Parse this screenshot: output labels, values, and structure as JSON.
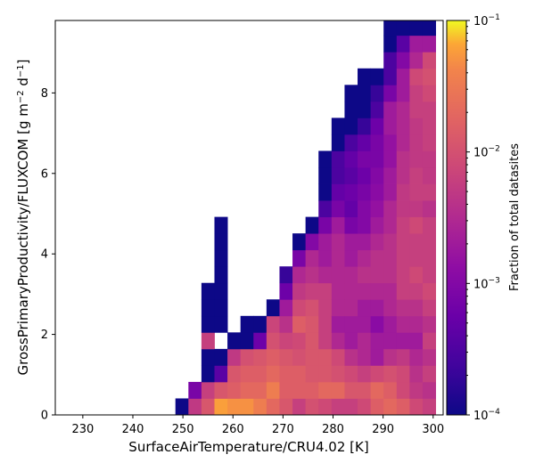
{
  "chart_data": {
    "type": "heatmap",
    "xlabel": "SurfaceAirTemperature/CRU4.02 [K]",
    "ylabel_main": "GrossPrimaryProductivity/FLUXCOM [g m",
    "ylabel_sup1": "−2",
    "ylabel_mid": " d",
    "ylabel_sup2": "−1",
    "ylabel_end": "]",
    "xlim": [
      224.5,
      302
    ],
    "ylim": [
      0,
      9.8
    ],
    "x_ticks": [
      230,
      240,
      250,
      260,
      270,
      280,
      290,
      300
    ],
    "y_ticks": [
      0,
      2,
      4,
      6,
      8
    ],
    "x_bin_edges_start": 248.5,
    "x_bin_width": 2.6,
    "y_bin_width": 0.41,
    "colorbar": {
      "label": "Fraction of total datasites",
      "scale": "log",
      "min": 0.0001,
      "max": 0.1,
      "tick_base": "10",
      "tick_exponents": [
        "−4",
        "−3",
        "−2",
        "−1"
      ],
      "colormap": "plasma"
    },
    "columns": [
      {
        "x": 249.8,
        "cells": [
          [
            0,
            0.0001
          ]
        ]
      },
      {
        "x": 252.4,
        "cells": [
          [
            0,
            0.005
          ],
          [
            1,
            0.0008
          ]
        ]
      },
      {
        "x": 255.0,
        "cells": [
          [
            0,
            0.012
          ],
          [
            1,
            0.006
          ],
          [
            2,
            0.0001
          ],
          [
            3,
            0.0001
          ],
          [
            4,
            0.006
          ],
          [
            5,
            0.0001
          ],
          [
            6,
            0.0001
          ],
          [
            7,
            0.0001
          ]
        ]
      },
      {
        "x": 257.6,
        "cells": [
          [
            0,
            0.06
          ],
          [
            1,
            0.012
          ],
          [
            2,
            0.0004
          ],
          [
            3,
            0.0001
          ],
          [
            5,
            0.0001
          ],
          [
            6,
            0.0001
          ],
          [
            7,
            0.0001
          ],
          [
            8,
            0.0001
          ],
          [
            9,
            0.0001
          ],
          [
            10,
            0.0001
          ],
          [
            11,
            0.0001
          ]
        ]
      },
      {
        "x": 260.2,
        "cells": [
          [
            0,
            0.05
          ],
          [
            1,
            0.015
          ],
          [
            2,
            0.012
          ],
          [
            3,
            0.005
          ],
          [
            4,
            0.0001
          ]
        ]
      },
      {
        "x": 262.8,
        "cells": [
          [
            0,
            0.05
          ],
          [
            1,
            0.02
          ],
          [
            2,
            0.015
          ],
          [
            3,
            0.01
          ],
          [
            4,
            0.0001
          ],
          [
            5,
            0.0001
          ]
        ]
      },
      {
        "x": 265.4,
        "cells": [
          [
            0,
            0.035
          ],
          [
            1,
            0.02
          ],
          [
            2,
            0.015
          ],
          [
            3,
            0.012
          ],
          [
            4,
            0.0006
          ],
          [
            5,
            0.0001
          ]
        ]
      },
      {
        "x": 268.0,
        "cells": [
          [
            0,
            0.02
          ],
          [
            1,
            0.035
          ],
          [
            2,
            0.02
          ],
          [
            3,
            0.015
          ],
          [
            4,
            0.01
          ],
          [
            5,
            0.007
          ],
          [
            6,
            0.0001
          ]
        ]
      },
      {
        "x": 270.6,
        "cells": [
          [
            0,
            0.012
          ],
          [
            1,
            0.015
          ],
          [
            2,
            0.015
          ],
          [
            3,
            0.012
          ],
          [
            4,
            0.007
          ],
          [
            5,
            0.004
          ],
          [
            6,
            0.002
          ],
          [
            7,
            0.0006
          ],
          [
            8,
            0.0002
          ]
        ]
      },
      {
        "x": 273.2,
        "cells": [
          [
            0,
            0.006
          ],
          [
            1,
            0.015
          ],
          [
            2,
            0.015
          ],
          [
            3,
            0.01
          ],
          [
            4,
            0.008
          ],
          [
            5,
            0.015
          ],
          [
            6,
            0.008
          ],
          [
            7,
            0.005
          ],
          [
            8,
            0.003
          ],
          [
            9,
            0.0008
          ],
          [
            10,
            0.0001
          ]
        ]
      },
      {
        "x": 275.8,
        "cells": [
          [
            0,
            0.01
          ],
          [
            1,
            0.015
          ],
          [
            2,
            0.012
          ],
          [
            3,
            0.012
          ],
          [
            4,
            0.012
          ],
          [
            5,
            0.012
          ],
          [
            6,
            0.01
          ],
          [
            7,
            0.006
          ],
          [
            8,
            0.004
          ],
          [
            9,
            0.003
          ],
          [
            10,
            0.001
          ],
          [
            11,
            0.0001
          ]
        ]
      },
      {
        "x": 278.4,
        "cells": [
          [
            0,
            0.008
          ],
          [
            1,
            0.02
          ],
          [
            2,
            0.012
          ],
          [
            3,
            0.012
          ],
          [
            4,
            0.006
          ],
          [
            5,
            0.006
          ],
          [
            6,
            0.006
          ],
          [
            7,
            0.006
          ],
          [
            8,
            0.003
          ],
          [
            9,
            0.002
          ],
          [
            10,
            0.002
          ],
          [
            11,
            0.0008
          ],
          [
            12,
            0.0003
          ],
          [
            13,
            0.0001
          ],
          [
            14,
            0.0001
          ],
          [
            15,
            0.0001
          ]
        ]
      },
      {
        "x": 281.0,
        "cells": [
          [
            0,
            0.006
          ],
          [
            1,
            0.02
          ],
          [
            2,
            0.01
          ],
          [
            3,
            0.008
          ],
          [
            4,
            0.003
          ],
          [
            5,
            0.002
          ],
          [
            6,
            0.003
          ],
          [
            7,
            0.003
          ],
          [
            8,
            0.003
          ],
          [
            9,
            0.003
          ],
          [
            10,
            0.003
          ],
          [
            11,
            0.002
          ],
          [
            12,
            0.0008
          ],
          [
            13,
            0.0005
          ],
          [
            14,
            0.0003
          ],
          [
            15,
            0.0003
          ],
          [
            16,
            0.0001
          ],
          [
            17,
            0.0001
          ]
        ]
      },
      {
        "x": 283.6,
        "cells": [
          [
            0,
            0.006
          ],
          [
            1,
            0.012
          ],
          [
            2,
            0.008
          ],
          [
            3,
            0.004
          ],
          [
            4,
            0.002
          ],
          [
            5,
            0.002
          ],
          [
            6,
            0.003
          ],
          [
            7,
            0.003
          ],
          [
            8,
            0.003
          ],
          [
            9,
            0.002
          ],
          [
            10,
            0.002
          ],
          [
            11,
            0.0008
          ],
          [
            12,
            0.0005
          ],
          [
            13,
            0.0006
          ],
          [
            14,
            0.0004
          ],
          [
            15,
            0.0005
          ],
          [
            16,
            0.0003
          ],
          [
            17,
            0.0001
          ],
          [
            18,
            0.0001
          ],
          [
            19,
            0.0001
          ]
        ]
      },
      {
        "x": 286.2,
        "cells": [
          [
            0,
            0.008
          ],
          [
            1,
            0.012
          ],
          [
            2,
            0.006
          ],
          [
            3,
            0.003
          ],
          [
            4,
            0.003
          ],
          [
            5,
            0.002
          ],
          [
            6,
            0.002
          ],
          [
            7,
            0.003
          ],
          [
            8,
            0.004
          ],
          [
            9,
            0.003
          ],
          [
            10,
            0.002
          ],
          [
            11,
            0.001
          ],
          [
            12,
            0.001
          ],
          [
            13,
            0.0008
          ],
          [
            14,
            0.0006
          ],
          [
            15,
            0.0008
          ],
          [
            16,
            0.0005
          ],
          [
            17,
            0.0002
          ],
          [
            18,
            0.0001
          ],
          [
            19,
            0.0001
          ],
          [
            20,
            0.0001
          ]
        ]
      },
      {
        "x": 288.8,
        "cells": [
          [
            0,
            0.015
          ],
          [
            1,
            0.02
          ],
          [
            2,
            0.008
          ],
          [
            3,
            0.002
          ],
          [
            4,
            0.002
          ],
          [
            5,
            0.0012
          ],
          [
            6,
            0.002
          ],
          [
            7,
            0.003
          ],
          [
            8,
            0.004
          ],
          [
            9,
            0.004
          ],
          [
            10,
            0.003
          ],
          [
            11,
            0.002
          ],
          [
            12,
            0.0015
          ],
          [
            13,
            0.0012
          ],
          [
            14,
            0.001
          ],
          [
            15,
            0.0008
          ],
          [
            16,
            0.0008
          ],
          [
            17,
            0.0006
          ],
          [
            18,
            0.0003
          ],
          [
            19,
            0.0002
          ],
          [
            20,
            0.0001
          ]
        ]
      },
      {
        "x": 291.4,
        "cells": [
          [
            0,
            0.02
          ],
          [
            1,
            0.015
          ],
          [
            2,
            0.01
          ],
          [
            3,
            0.004
          ],
          [
            4,
            0.002
          ],
          [
            5,
            0.002
          ],
          [
            6,
            0.003
          ],
          [
            7,
            0.003
          ],
          [
            8,
            0.004
          ],
          [
            9,
            0.004
          ],
          [
            10,
            0.004
          ],
          [
            11,
            0.003
          ],
          [
            12,
            0.003
          ],
          [
            13,
            0.002
          ],
          [
            14,
            0.002
          ],
          [
            15,
            0.0015
          ],
          [
            16,
            0.0015
          ],
          [
            17,
            0.002
          ],
          [
            18,
            0.002
          ],
          [
            19,
            0.0008
          ],
          [
            20,
            0.0003
          ],
          [
            21,
            0.0003
          ],
          [
            22,
            0.0001
          ],
          [
            23,
            0.0001
          ]
        ]
      },
      {
        "x": 294.0,
        "cells": [
          [
            0,
            0.015
          ],
          [
            1,
            0.008
          ],
          [
            2,
            0.008
          ],
          [
            3,
            0.005
          ],
          [
            4,
            0.002
          ],
          [
            5,
            0.003
          ],
          [
            6,
            0.004
          ],
          [
            7,
            0.006
          ],
          [
            8,
            0.006
          ],
          [
            9,
            0.006
          ],
          [
            10,
            0.006
          ],
          [
            11,
            0.006
          ],
          [
            12,
            0.005
          ],
          [
            13,
            0.005
          ],
          [
            14,
            0.004
          ],
          [
            15,
            0.004
          ],
          [
            16,
            0.003
          ],
          [
            17,
            0.003
          ],
          [
            18,
            0.003
          ],
          [
            19,
            0.002
          ],
          [
            20,
            0.002
          ],
          [
            21,
            0.001
          ],
          [
            22,
            0.0004
          ],
          [
            23,
            0.0001
          ]
        ]
      },
      {
        "x": 296.6,
        "cells": [
          [
            0,
            0.008
          ],
          [
            1,
            0.005
          ],
          [
            2,
            0.004
          ],
          [
            3,
            0.003
          ],
          [
            4,
            0.002
          ],
          [
            5,
            0.003
          ],
          [
            6,
            0.004
          ],
          [
            7,
            0.006
          ],
          [
            8,
            0.008
          ],
          [
            9,
            0.006
          ],
          [
            10,
            0.006
          ],
          [
            11,
            0.008
          ],
          [
            12,
            0.005
          ],
          [
            13,
            0.006
          ],
          [
            14,
            0.006
          ],
          [
            15,
            0.005
          ],
          [
            16,
            0.005
          ],
          [
            17,
            0.005
          ],
          [
            18,
            0.006
          ],
          [
            19,
            0.006
          ],
          [
            20,
            0.008
          ],
          [
            21,
            0.003
          ],
          [
            22,
            0.002
          ],
          [
            23,
            0.0001
          ]
        ]
      },
      {
        "x": 299.2,
        "cells": [
          [
            0,
            0.006
          ],
          [
            1,
            0.004
          ],
          [
            2,
            0.006
          ],
          [
            3,
            0.004
          ],
          [
            4,
            0.006
          ],
          [
            5,
            0.004
          ],
          [
            6,
            0.006
          ],
          [
            7,
            0.008
          ],
          [
            8,
            0.006
          ],
          [
            9,
            0.006
          ],
          [
            10,
            0.006
          ],
          [
            11,
            0.006
          ],
          [
            12,
            0.004
          ],
          [
            13,
            0.006
          ],
          [
            14,
            0.005
          ],
          [
            15,
            0.005
          ],
          [
            16,
            0.006
          ],
          [
            17,
            0.006
          ],
          [
            18,
            0.006
          ],
          [
            19,
            0.008
          ],
          [
            20,
            0.01
          ],
          [
            21,
            0.008
          ],
          [
            22,
            0.002
          ],
          [
            23,
            0.0001
          ]
        ]
      }
    ]
  }
}
